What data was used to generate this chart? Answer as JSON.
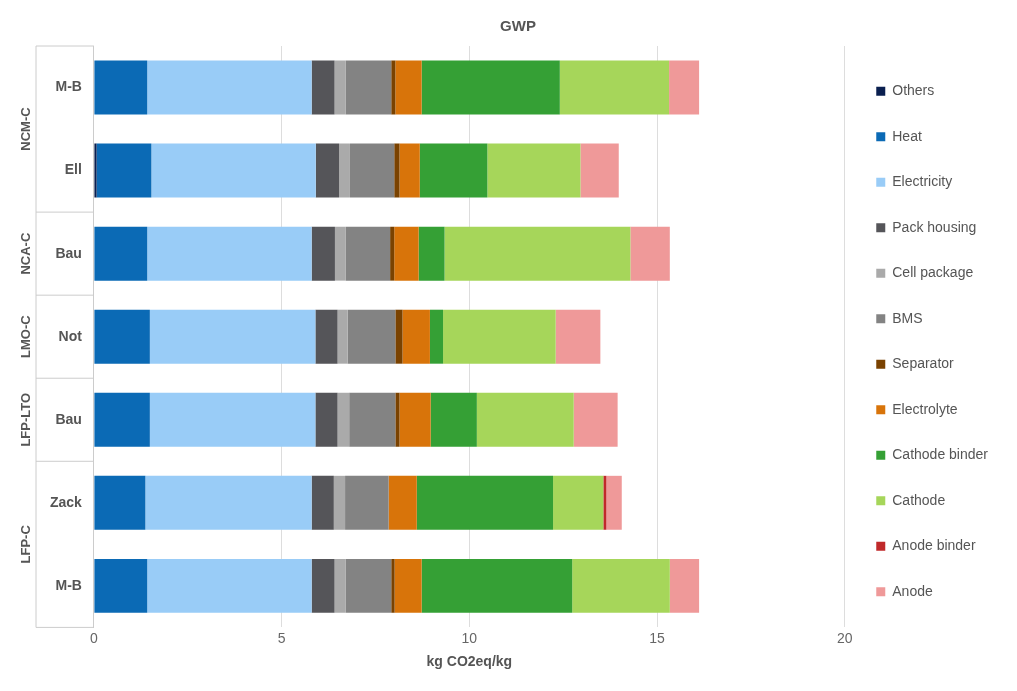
{
  "chart_data": {
    "type": "bar",
    "orientation": "horizontal",
    "stacked": true,
    "title": "GWP",
    "xlabel": "kg CO2eq/kg",
    "categories": [
      "M-B",
      "Ell",
      "Bau",
      "Not",
      "Bau",
      "Zack",
      "M-B"
    ],
    "annotations": [
      "NCM-C",
      "NCA-C",
      "LMO-C",
      "LFP-LTO",
      "LFP-C"
    ],
    "xlim": [
      0,
      20
    ],
    "xticks": [
      0,
      5,
      10,
      15,
      20
    ],
    "grid": "x",
    "legend": "right",
    "series": [
      {
        "name": "Others",
        "color": "#0a1f4f",
        "values": [
          0,
          0.07,
          0,
          0,
          0,
          0,
          0
        ]
      },
      {
        "name": "Heat",
        "color": "#0b6ab5",
        "values": [
          1.42,
          1.46,
          1.42,
          1.49,
          1.49,
          1.37,
          1.42
        ]
      },
      {
        "name": "Electricity",
        "color": "#99ccf7",
        "values": [
          4.38,
          4.38,
          4.38,
          4.41,
          4.41,
          4.43,
          4.38
        ]
      },
      {
        "name": "Pack housing",
        "color": "#555559",
        "values": [
          0.61,
          0.62,
          0.62,
          0.59,
          0.59,
          0.59,
          0.61
        ]
      },
      {
        "name": "Cell package",
        "color": "#aaaaaa",
        "values": [
          0.3,
          0.29,
          0.29,
          0.27,
          0.31,
          0.3,
          0.3
        ]
      },
      {
        "name": "BMS",
        "color": "#838383",
        "values": [
          1.21,
          1.18,
          1.18,
          1.27,
          1.23,
          1.16,
          1.21
        ]
      },
      {
        "name": "Separator",
        "color": "#7a4200",
        "values": [
          0.11,
          0.14,
          0.11,
          0.19,
          0.11,
          0,
          0.09
        ]
      },
      {
        "name": "Electrolyte",
        "color": "#d8740a",
        "values": [
          0.7,
          0.54,
          0.65,
          0.73,
          0.83,
          0.75,
          0.72
        ]
      },
      {
        "name": "Cathode binder",
        "color": "#35a035",
        "values": [
          3.68,
          1.8,
          0.69,
          0.35,
          1.23,
          3.63,
          4.01
        ]
      },
      {
        "name": "Cathode",
        "color": "#a6d65a",
        "values": [
          2.91,
          2.48,
          4.95,
          3.0,
          2.58,
          1.34,
          2.6
        ]
      },
      {
        "name": "Anode binder",
        "color": "#c0292a",
        "values": [
          0,
          0,
          0,
          0,
          0,
          0.08,
          0
        ]
      },
      {
        "name": "Anode",
        "color": "#ef9999",
        "values": [
          0.8,
          1.02,
          1.05,
          1.19,
          1.17,
          0.41,
          0.78
        ]
      }
    ]
  }
}
